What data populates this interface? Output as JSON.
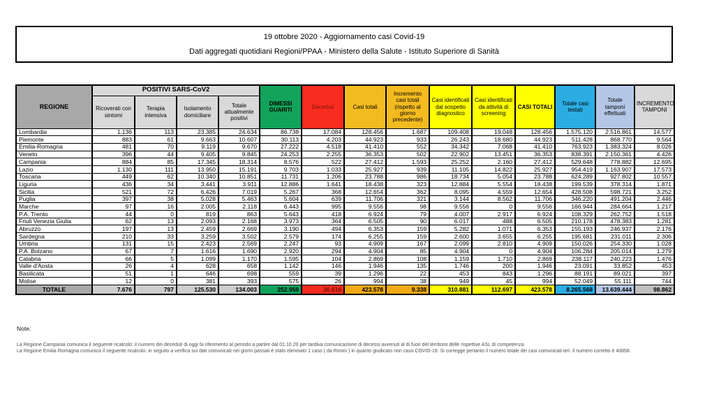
{
  "report": {
    "title_line1": "19 ottobre 2020 - Aggiornamento casi Covid-19",
    "title_line2": "Dati aggregati quotidiani Regioni/PPAA - Ministero della Salute - Istituto Superiore di Sanità"
  },
  "table": {
    "headers": {
      "regione": "REGIONE",
      "positivi_group": "POSITIVI SARS-CoV2",
      "ricoverati": "Ricoverati con sintomi",
      "terapia": "Terapia intensiva",
      "isolamento": "Isolamento domiciliare",
      "tot_positivi": "Totale attualmente positivi",
      "dimessi": "DIMESSI GUARITI",
      "deceduti": "Deceduti",
      "casi_totali": "Casi totali",
      "incremento_casi": "Incremento casi totali (rispetto al giorno precedente)",
      "sospetto": "Casi identificati dal sospetto diagnostico",
      "screening": "Casi identificati da attività di screening",
      "casi_totali_caps": "CASI TOTALI",
      "testati": "Totale casi testati",
      "tamponi": "Totale tamponi effettuati",
      "incremento_tamponi": "INCREMENTO TAMPONI"
    },
    "rows": [
      [
        "Lombardia",
        "1.136",
        "113",
        "23.385",
        "24.634",
        "86.738",
        "17.084",
        "128.456",
        "1.687",
        "109.408",
        "19.048",
        "128.456",
        "1.575.120",
        "2.516.861",
        "14.577"
      ],
      [
        "Piemonte",
        "883",
        "61",
        "9.663",
        "10.607",
        "30.113",
        "4.203",
        "44.923",
        "933",
        "26.243",
        "18.680",
        "44.923",
        "511.428",
        "868.770",
        "9.564"
      ],
      [
        "Emilia-Romagna",
        "481",
        "70",
        "9.119",
        "9.670",
        "27.222",
        "4.518",
        "41.410",
        "552",
        "34.342",
        "7.068",
        "41.410",
        "763.923",
        "1.383.324",
        "8.026"
      ],
      [
        "Veneto",
        "396",
        "44",
        "9.405",
        "9.845",
        "24.253",
        "2.255",
        "36.353",
        "502",
        "22.902",
        "13.451",
        "36.353",
        "838.391",
        "2.150.361",
        "4.426"
      ],
      [
        "Campania",
        "884",
        "85",
        "17.345",
        "18.314",
        "8.576",
        "522",
        "27.412",
        "1.593",
        "25.252",
        "2.160",
        "27.412",
        "529.648",
        "778.882",
        "12.695"
      ],
      [
        "Lazio",
        "1.130",
        "111",
        "13.950",
        "15.191",
        "9.703",
        "1.033",
        "25.927",
        "939",
        "11.105",
        "14.822",
        "25.927",
        "954.419",
        "1.163.907",
        "17.573"
      ],
      [
        "Toscana",
        "449",
        "62",
        "10.340",
        "10.851",
        "11.731",
        "1.206",
        "23.788",
        "986",
        "18.734",
        "5.054",
        "23.788",
        "624.289",
        "927.802",
        "10.557"
      ],
      [
        "Liguria",
        "436",
        "34",
        "3.441",
        "3.911",
        "12.886",
        "1.641",
        "18.438",
        "323",
        "12.884",
        "5.554",
        "18.438",
        "199.539",
        "378.314",
        "1.871"
      ],
      [
        "Sicilia",
        "521",
        "72",
        "6.426",
        "7.019",
        "5.267",
        "368",
        "12.654",
        "362",
        "8.095",
        "4.559",
        "12.654",
        "428.508",
        "598.721",
        "3.252"
      ],
      [
        "Puglia",
        "397",
        "38",
        "5.028",
        "5.463",
        "5.604",
        "639",
        "11.706",
        "321",
        "3.144",
        "8.562",
        "11.706",
        "346.220",
        "491.204",
        "2.446"
      ],
      [
        "Marche",
        "97",
        "16",
        "2.005",
        "2.118",
        "6.443",
        "995",
        "9.556",
        "98",
        "9.556",
        "0",
        "9.556",
        "166.944",
        "284.664",
        "1.217"
      ],
      [
        "P.A. Trento",
        "44",
        "0",
        "819",
        "863",
        "5.643",
        "418",
        "6.924",
        "79",
        "4.007",
        "2.917",
        "6.924",
        "108.329",
        "262.752",
        "1.518"
      ],
      [
        "Friuli Venezia Giulia",
        "62",
        "13",
        "2.093",
        "2.168",
        "3.973",
        "364",
        "6.505",
        "90",
        "6.017",
        "488",
        "6.505",
        "210.178",
        "478.383",
        "1.281"
      ],
      [
        "Abruzzo",
        "197",
        "13",
        "2.459",
        "2.669",
        "3.190",
        "494",
        "6.353",
        "159",
        "5.282",
        "1.071",
        "6.353",
        "155.193",
        "246.937",
        "2.176"
      ],
      [
        "Sardegna",
        "210",
        "33",
        "3.259",
        "3.502",
        "2.579",
        "174",
        "6.255",
        "159",
        "2.600",
        "3.655",
        "6.255",
        "195.681",
        "231.011",
        "2.306"
      ],
      [
        "Umbria",
        "131",
        "15",
        "2.423",
        "2.569",
        "2.247",
        "93",
        "4.909",
        "167",
        "2.099",
        "2.810",
        "4.909",
        "150.026",
        "254.330",
        "1.028"
      ],
      [
        "P.A. Bolzano",
        "67",
        "7",
        "1.616",
        "1.690",
        "2.920",
        "294",
        "4.904",
        "85",
        "4.904",
        "0",
        "4.904",
        "106.284",
        "205.014",
        "1.279"
      ],
      [
        "Calabria",
        "66",
        "5",
        "1.099",
        "1.170",
        "1.595",
        "104",
        "2.869",
        "108",
        "1.159",
        "1.710",
        "2.869",
        "238.117",
        "240.223",
        "1.476"
      ],
      [
        "Valle d'Aosta",
        "26",
        "4",
        "628",
        "658",
        "1.142",
        "146",
        "1.946",
        "135",
        "1.746",
        "200",
        "1.946",
        "23.091",
        "33.852",
        "453"
      ],
      [
        "Basilicata",
        "51",
        "1",
        "646",
        "698",
        "559",
        "39",
        "1.296",
        "22",
        "453",
        "843",
        "1.296",
        "88.191",
        "89.021",
        "397"
      ],
      [
        "Molise",
        "12",
        "0",
        "381",
        "393",
        "575",
        "26",
        "994",
        "38",
        "949",
        "45",
        "994",
        "52.049",
        "55.111",
        "744"
      ]
    ],
    "total_label": "TOTALE",
    "total_values": [
      "7.676",
      "797",
      "125.530",
      "134.003",
      "252.959",
      "36.616",
      "423.578",
      "9.338",
      "310.881",
      "112.697",
      "423.578",
      "8.265.568",
      "13.639.444",
      "98.862"
    ]
  },
  "notes": {
    "label": "Note:",
    "lines": [
      "La Regione Campania comunica il seguente ricalcolo: il numero dei deceduti di oggi fa riferimento al periodo a partire dal 01.10.20 per tardiva comunicazione di decessi avvenuti al di fuori del territorio delle rispettive ASL di competenza.",
      "La Regione Emilia Romagna comunica il seguente ricalcolo: in seguito a verifica sui dati comunicati nei giorni passati è stato eliminato 1 caso ( da Rimini ) in quanto giudicato non caso COVID-19. Si corregge pertanto il numero totale dei casi comunicati ieri. il numero corretto è 40858."
    ]
  },
  "colors": {
    "green": "#12A35B",
    "red": "#F82C1E",
    "orange": "#F4BB20",
    "yellow": "#FFFF00",
    "blue": "#2BACE2",
    "periwinkle": "#B4C7E7",
    "header_gray": "#A8A8A8",
    "light_gray": "#D9D9D9"
  }
}
